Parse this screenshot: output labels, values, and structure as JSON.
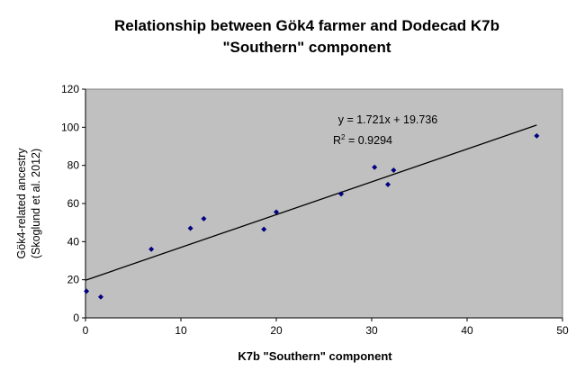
{
  "chart_data": {
    "type": "scatter",
    "title_lines": [
      "Relationship between Gök4 farmer and Dodecad K7b",
      "\"Southern\" component"
    ],
    "xlabel": "K7b \"Southern\" component",
    "ylabel_lines": [
      "Gök4-related ancestry",
      "(Skoglund et al. 2012)"
    ],
    "xlim": [
      0,
      50
    ],
    "ylim": [
      0,
      120
    ],
    "xticks": [
      0,
      10,
      20,
      30,
      40,
      50
    ],
    "yticks": [
      0,
      20,
      40,
      60,
      80,
      100,
      120
    ],
    "grid": false,
    "legend": "none",
    "plot_background": "#c0c0c0",
    "marker_color": "#000080",
    "trendline_color": "#000000",
    "points": [
      {
        "x": 0.1,
        "y": 14
      },
      {
        "x": 1.6,
        "y": 11
      },
      {
        "x": 6.9,
        "y": 36
      },
      {
        "x": 11.0,
        "y": 47
      },
      {
        "x": 12.4,
        "y": 52
      },
      {
        "x": 18.7,
        "y": 46.5
      },
      {
        "x": 20.0,
        "y": 55.5
      },
      {
        "x": 26.8,
        "y": 65
      },
      {
        "x": 30.3,
        "y": 79
      },
      {
        "x": 31.7,
        "y": 70
      },
      {
        "x": 32.3,
        "y": 77.5
      },
      {
        "x": 47.3,
        "y": 95.5
      }
    ],
    "trendline": {
      "slope": 1.721,
      "intercept": 19.736,
      "x_start": 0,
      "x_end": 47.3
    },
    "annotation": {
      "equation": "y = 1.721x + 19.736",
      "r2_prefix": "R",
      "r2_sup": "2",
      "r2_value": " = 0.9294"
    }
  }
}
